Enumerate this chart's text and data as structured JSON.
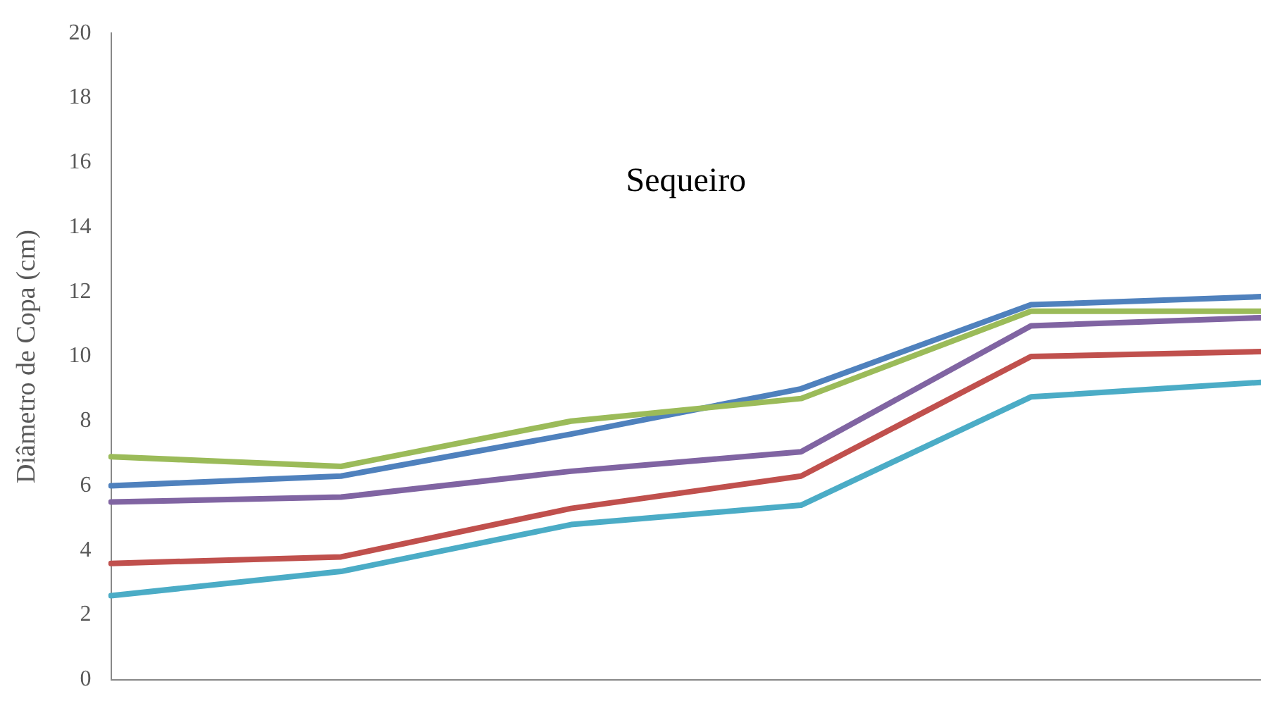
{
  "chart_data": {
    "type": "line",
    "ylabel": "Diâmetro de Copa (cm)",
    "annotations": [
      "Sequeiro"
    ],
    "categories": [
      null,
      null,
      null,
      null,
      null,
      null
    ],
    "series": [
      {
        "color": "#9bbb59",
        "values": [
          6.9,
          6.6,
          8.0,
          8.7,
          11.4,
          11.4
        ]
      },
      {
        "color": "#4f81bd",
        "values": [
          6.0,
          6.3,
          7.6,
          9.0,
          11.6,
          11.85
        ]
      },
      {
        "color": "#8064a2",
        "values": [
          5.5,
          5.65,
          6.45,
          7.05,
          10.95,
          11.2
        ]
      },
      {
        "color": "#c0504d",
        "values": [
          3.6,
          3.8,
          5.3,
          6.3,
          10.0,
          10.15
        ]
      },
      {
        "color": "#4bacc6",
        "values": [
          2.6,
          3.35,
          4.8,
          5.4,
          8.75,
          9.2
        ]
      }
    ],
    "ylim": [
      0,
      20
    ],
    "yticks": [
      0,
      2,
      4,
      6,
      8,
      10,
      12,
      14,
      16,
      18,
      20
    ],
    "grid": false,
    "legend": false,
    "tick_labels": "y",
    "marker": "none",
    "line_style": "solid"
  }
}
